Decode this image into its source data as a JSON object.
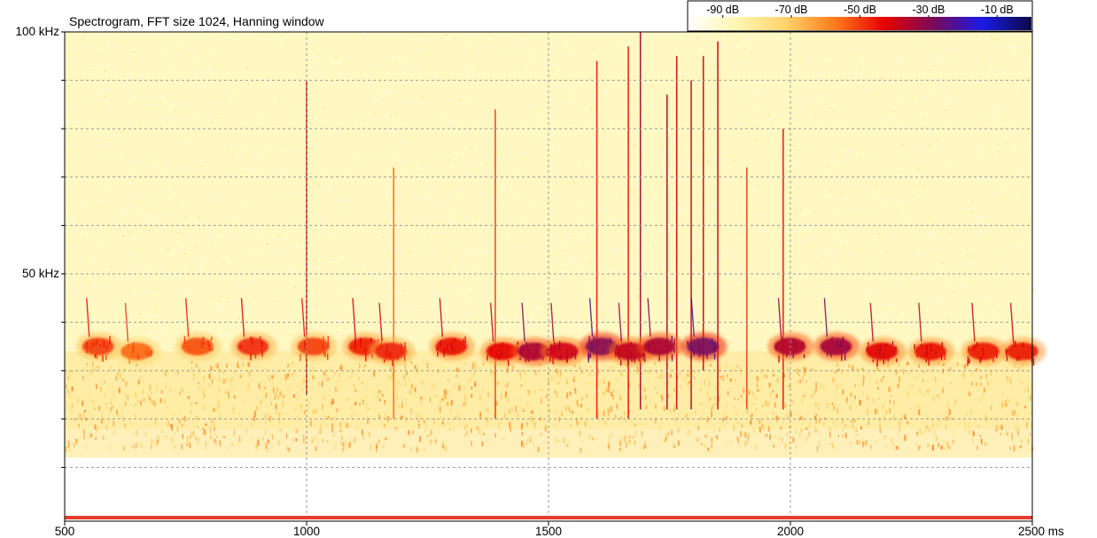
{
  "chart_data": {
    "type": "heatmap",
    "title": "Spectrogram, FFT size 1024, Hanning window",
    "x_axis": {
      "range": [
        500,
        2500
      ],
      "unit": "ms",
      "ticks": [
        500,
        1000,
        1500,
        2000,
        2500
      ],
      "tick_labels": [
        "500",
        "1000",
        "1500",
        "2000",
        "2500 ms"
      ],
      "gridlines": [
        1000,
        1500,
        2000
      ]
    },
    "y_axis": {
      "range": [
        0,
        100
      ],
      "unit": "kHz",
      "labeled_ticks": [
        100,
        50
      ],
      "tick_labels": [
        "100 kHz",
        "50 kHz"
      ],
      "gridlines_every_khz": 10
    },
    "color_scale": {
      "labels": [
        "-90 dB",
        "-70 dB",
        "-50 dB",
        "-30 dB",
        "-10 dB"
      ],
      "values_db": [
        -90,
        -70,
        -50,
        -30,
        -10
      ],
      "range_db": [
        -100,
        0
      ],
      "colors": [
        "#ffffff",
        "#fff5b0",
        "#ffd36a",
        "#ff7a1a",
        "#e60000",
        "#7a0a5a",
        "#1a1ae6",
        "#0a0a45"
      ]
    },
    "background_noise": {
      "max_frequency_khz": 18,
      "level_band_khz": [
        20,
        34
      ],
      "level_band_db": -70
    },
    "calls": [
      {
        "time_ms": 560,
        "peak_khz": 35,
        "level_db": -50
      },
      {
        "time_ms": 640,
        "peak_khz": 34,
        "level_db": -55
      },
      {
        "time_ms": 765,
        "peak_khz": 35,
        "level_db": -52
      },
      {
        "time_ms": 880,
        "peak_khz": 35,
        "level_db": -48
      },
      {
        "time_ms": 1005,
        "peak_khz": 35,
        "level_db": -50
      },
      {
        "time_ms": 1110,
        "peak_khz": 35,
        "level_db": -46
      },
      {
        "time_ms": 1165,
        "peak_khz": 34,
        "level_db": -47
      },
      {
        "time_ms": 1290,
        "peak_khz": 35,
        "level_db": -44
      },
      {
        "time_ms": 1395,
        "peak_khz": 34,
        "level_db": -43
      },
      {
        "time_ms": 1460,
        "peak_khz": 34,
        "level_db": -35
      },
      {
        "time_ms": 1520,
        "peak_khz": 34,
        "level_db": -40
      },
      {
        "time_ms": 1600,
        "peak_khz": 35,
        "level_db": -30
      },
      {
        "time_ms": 1660,
        "peak_khz": 34,
        "level_db": -38
      },
      {
        "time_ms": 1720,
        "peak_khz": 35,
        "level_db": -35
      },
      {
        "time_ms": 1810,
        "peak_khz": 35,
        "level_db": -28
      },
      {
        "time_ms": 1990,
        "peak_khz": 35,
        "level_db": -36
      },
      {
        "time_ms": 2085,
        "peak_khz": 35,
        "level_db": -34
      },
      {
        "time_ms": 2180,
        "peak_khz": 34,
        "level_db": -42
      },
      {
        "time_ms": 2280,
        "peak_khz": 34,
        "level_db": -44
      },
      {
        "time_ms": 2390,
        "peak_khz": 34,
        "level_db": -45
      },
      {
        "time_ms": 2470,
        "peak_khz": 34,
        "level_db": -45
      }
    ],
    "transients": [
      {
        "time_ms": 1000,
        "from_khz": 25,
        "to_khz": 90,
        "level_db": -40
      },
      {
        "time_ms": 1180,
        "from_khz": 20,
        "to_khz": 72,
        "level_db": -55
      },
      {
        "time_ms": 1390,
        "from_khz": 20,
        "to_khz": 84,
        "level_db": -50
      },
      {
        "time_ms": 1600,
        "from_khz": 20,
        "to_khz": 94,
        "level_db": -45
      },
      {
        "time_ms": 1665,
        "from_khz": 20,
        "to_khz": 97,
        "level_db": -45
      },
      {
        "time_ms": 1690,
        "from_khz": 22,
        "to_khz": 100,
        "level_db": -35
      },
      {
        "time_ms": 1745,
        "from_khz": 22,
        "to_khz": 87,
        "level_db": -35
      },
      {
        "time_ms": 1765,
        "from_khz": 22,
        "to_khz": 95,
        "level_db": -40
      },
      {
        "time_ms": 1795,
        "from_khz": 22,
        "to_khz": 90,
        "level_db": -40
      },
      {
        "time_ms": 1820,
        "from_khz": 30,
        "to_khz": 95,
        "level_db": -40
      },
      {
        "time_ms": 1850,
        "from_khz": 22,
        "to_khz": 98,
        "level_db": -40
      },
      {
        "time_ms": 1910,
        "from_khz": 22,
        "to_khz": 72,
        "level_db": -50
      },
      {
        "time_ms": 1985,
        "from_khz": 22,
        "to_khz": 80,
        "level_db": -45
      }
    ]
  }
}
